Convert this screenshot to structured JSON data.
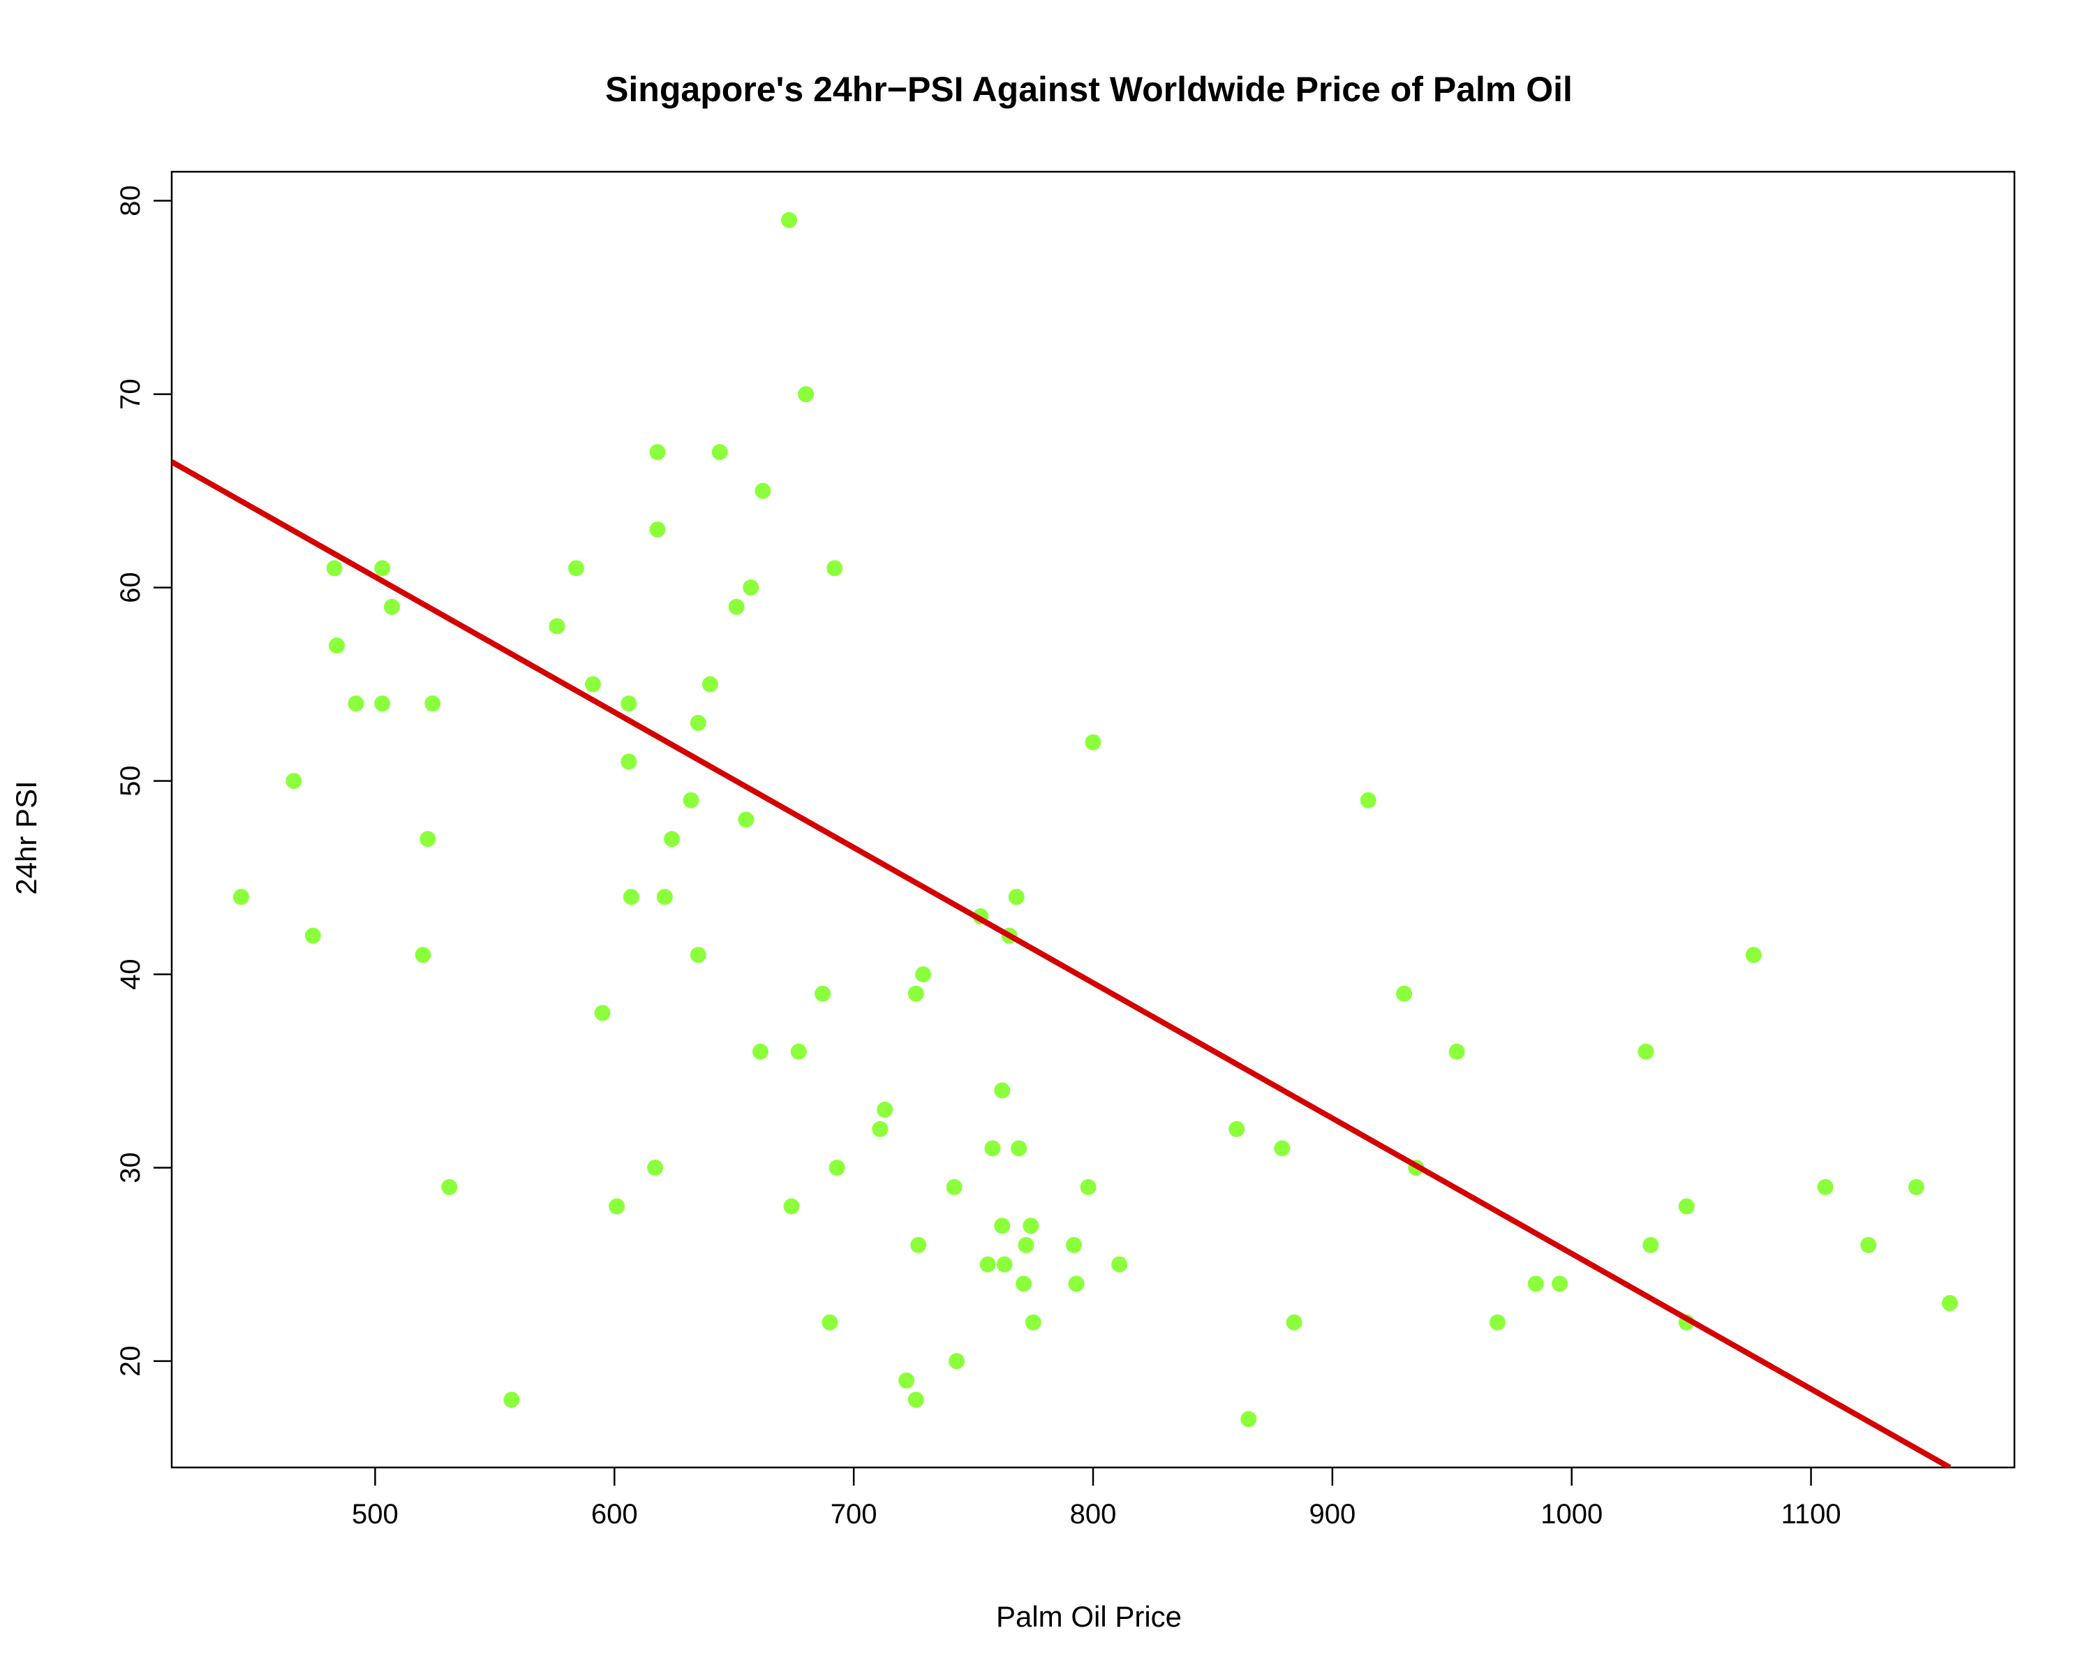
{
  "chart_data": {
    "type": "scatter",
    "title": "Singapore's 24hr−PSI Against Worldwide Price of Palm Oil",
    "xlabel": "Palm Oil Price",
    "ylabel": "24hr PSI",
    "xlim": [
      415,
      1185
    ],
    "ylim": [
      14.5,
      81.5
    ],
    "x_ticks": [
      500,
      600,
      700,
      800,
      900,
      1000,
      1100
    ],
    "y_ticks": [
      20,
      30,
      40,
      50,
      60,
      70,
      80
    ],
    "grid": false,
    "legend": "none",
    "point_color": "#8cff3c",
    "line_color": "#d40000",
    "regression_line": {
      "x": [
        415,
        1158
      ],
      "y": [
        66.5,
        14.5
      ]
    },
    "points": [
      {
        "x": 444,
        "y": 44
      },
      {
        "x": 466,
        "y": 50
      },
      {
        "x": 474,
        "y": 42
      },
      {
        "x": 483,
        "y": 61
      },
      {
        "x": 484,
        "y": 57
      },
      {
        "x": 492,
        "y": 54
      },
      {
        "x": 503,
        "y": 54
      },
      {
        "x": 503,
        "y": 61
      },
      {
        "x": 507,
        "y": 59
      },
      {
        "x": 520,
        "y": 41
      },
      {
        "x": 522,
        "y": 47
      },
      {
        "x": 524,
        "y": 54
      },
      {
        "x": 531,
        "y": 29
      },
      {
        "x": 557,
        "y": 18
      },
      {
        "x": 576,
        "y": 58
      },
      {
        "x": 584,
        "y": 61
      },
      {
        "x": 591,
        "y": 55
      },
      {
        "x": 595,
        "y": 38
      },
      {
        "x": 601,
        "y": 28
      },
      {
        "x": 606,
        "y": 51
      },
      {
        "x": 606,
        "y": 54
      },
      {
        "x": 607,
        "y": 44
      },
      {
        "x": 617,
        "y": 30
      },
      {
        "x": 618,
        "y": 67
      },
      {
        "x": 618,
        "y": 63
      },
      {
        "x": 621,
        "y": 44
      },
      {
        "x": 624,
        "y": 47
      },
      {
        "x": 632,
        "y": 49
      },
      {
        "x": 635,
        "y": 53
      },
      {
        "x": 635,
        "y": 41
      },
      {
        "x": 640,
        "y": 55
      },
      {
        "x": 644,
        "y": 67
      },
      {
        "x": 651,
        "y": 59
      },
      {
        "x": 655,
        "y": 48
      },
      {
        "x": 657,
        "y": 60
      },
      {
        "x": 661,
        "y": 36
      },
      {
        "x": 662,
        "y": 65
      },
      {
        "x": 673,
        "y": 79
      },
      {
        "x": 674,
        "y": 28
      },
      {
        "x": 677,
        "y": 36
      },
      {
        "x": 680,
        "y": 70
      },
      {
        "x": 687,
        "y": 39
      },
      {
        "x": 690,
        "y": 22
      },
      {
        "x": 692,
        "y": 61
      },
      {
        "x": 693,
        "y": 30
      },
      {
        "x": 711,
        "y": 32
      },
      {
        "x": 713,
        "y": 33
      },
      {
        "x": 722,
        "y": 19
      },
      {
        "x": 726,
        "y": 18
      },
      {
        "x": 726,
        "y": 39
      },
      {
        "x": 727,
        "y": 26
      },
      {
        "x": 729,
        "y": 40
      },
      {
        "x": 742,
        "y": 29
      },
      {
        "x": 743,
        "y": 20
      },
      {
        "x": 753,
        "y": 43
      },
      {
        "x": 756,
        "y": 25
      },
      {
        "x": 758,
        "y": 31
      },
      {
        "x": 762,
        "y": 27
      },
      {
        "x": 762,
        "y": 34
      },
      {
        "x": 763,
        "y": 25
      },
      {
        "x": 765,
        "y": 42
      },
      {
        "x": 768,
        "y": 44
      },
      {
        "x": 769,
        "y": 31
      },
      {
        "x": 771,
        "y": 24
      },
      {
        "x": 772,
        "y": 26
      },
      {
        "x": 774,
        "y": 27
      },
      {
        "x": 775,
        "y": 22
      },
      {
        "x": 792,
        "y": 26
      },
      {
        "x": 793,
        "y": 24
      },
      {
        "x": 798,
        "y": 29
      },
      {
        "x": 800,
        "y": 52
      },
      {
        "x": 811,
        "y": 25
      },
      {
        "x": 860,
        "y": 32
      },
      {
        "x": 865,
        "y": 17
      },
      {
        "x": 879,
        "y": 31
      },
      {
        "x": 884,
        "y": 22
      },
      {
        "x": 915,
        "y": 49
      },
      {
        "x": 930,
        "y": 39
      },
      {
        "x": 935,
        "y": 30
      },
      {
        "x": 952,
        "y": 36
      },
      {
        "x": 969,
        "y": 22
      },
      {
        "x": 985,
        "y": 24
      },
      {
        "x": 995,
        "y": 24
      },
      {
        "x": 1031,
        "y": 36
      },
      {
        "x": 1033,
        "y": 26
      },
      {
        "x": 1048,
        "y": 28
      },
      {
        "x": 1048,
        "y": 22
      },
      {
        "x": 1076,
        "y": 41
      },
      {
        "x": 1106,
        "y": 29
      },
      {
        "x": 1124,
        "y": 26
      },
      {
        "x": 1144,
        "y": 29
      },
      {
        "x": 1158,
        "y": 23
      }
    ]
  }
}
